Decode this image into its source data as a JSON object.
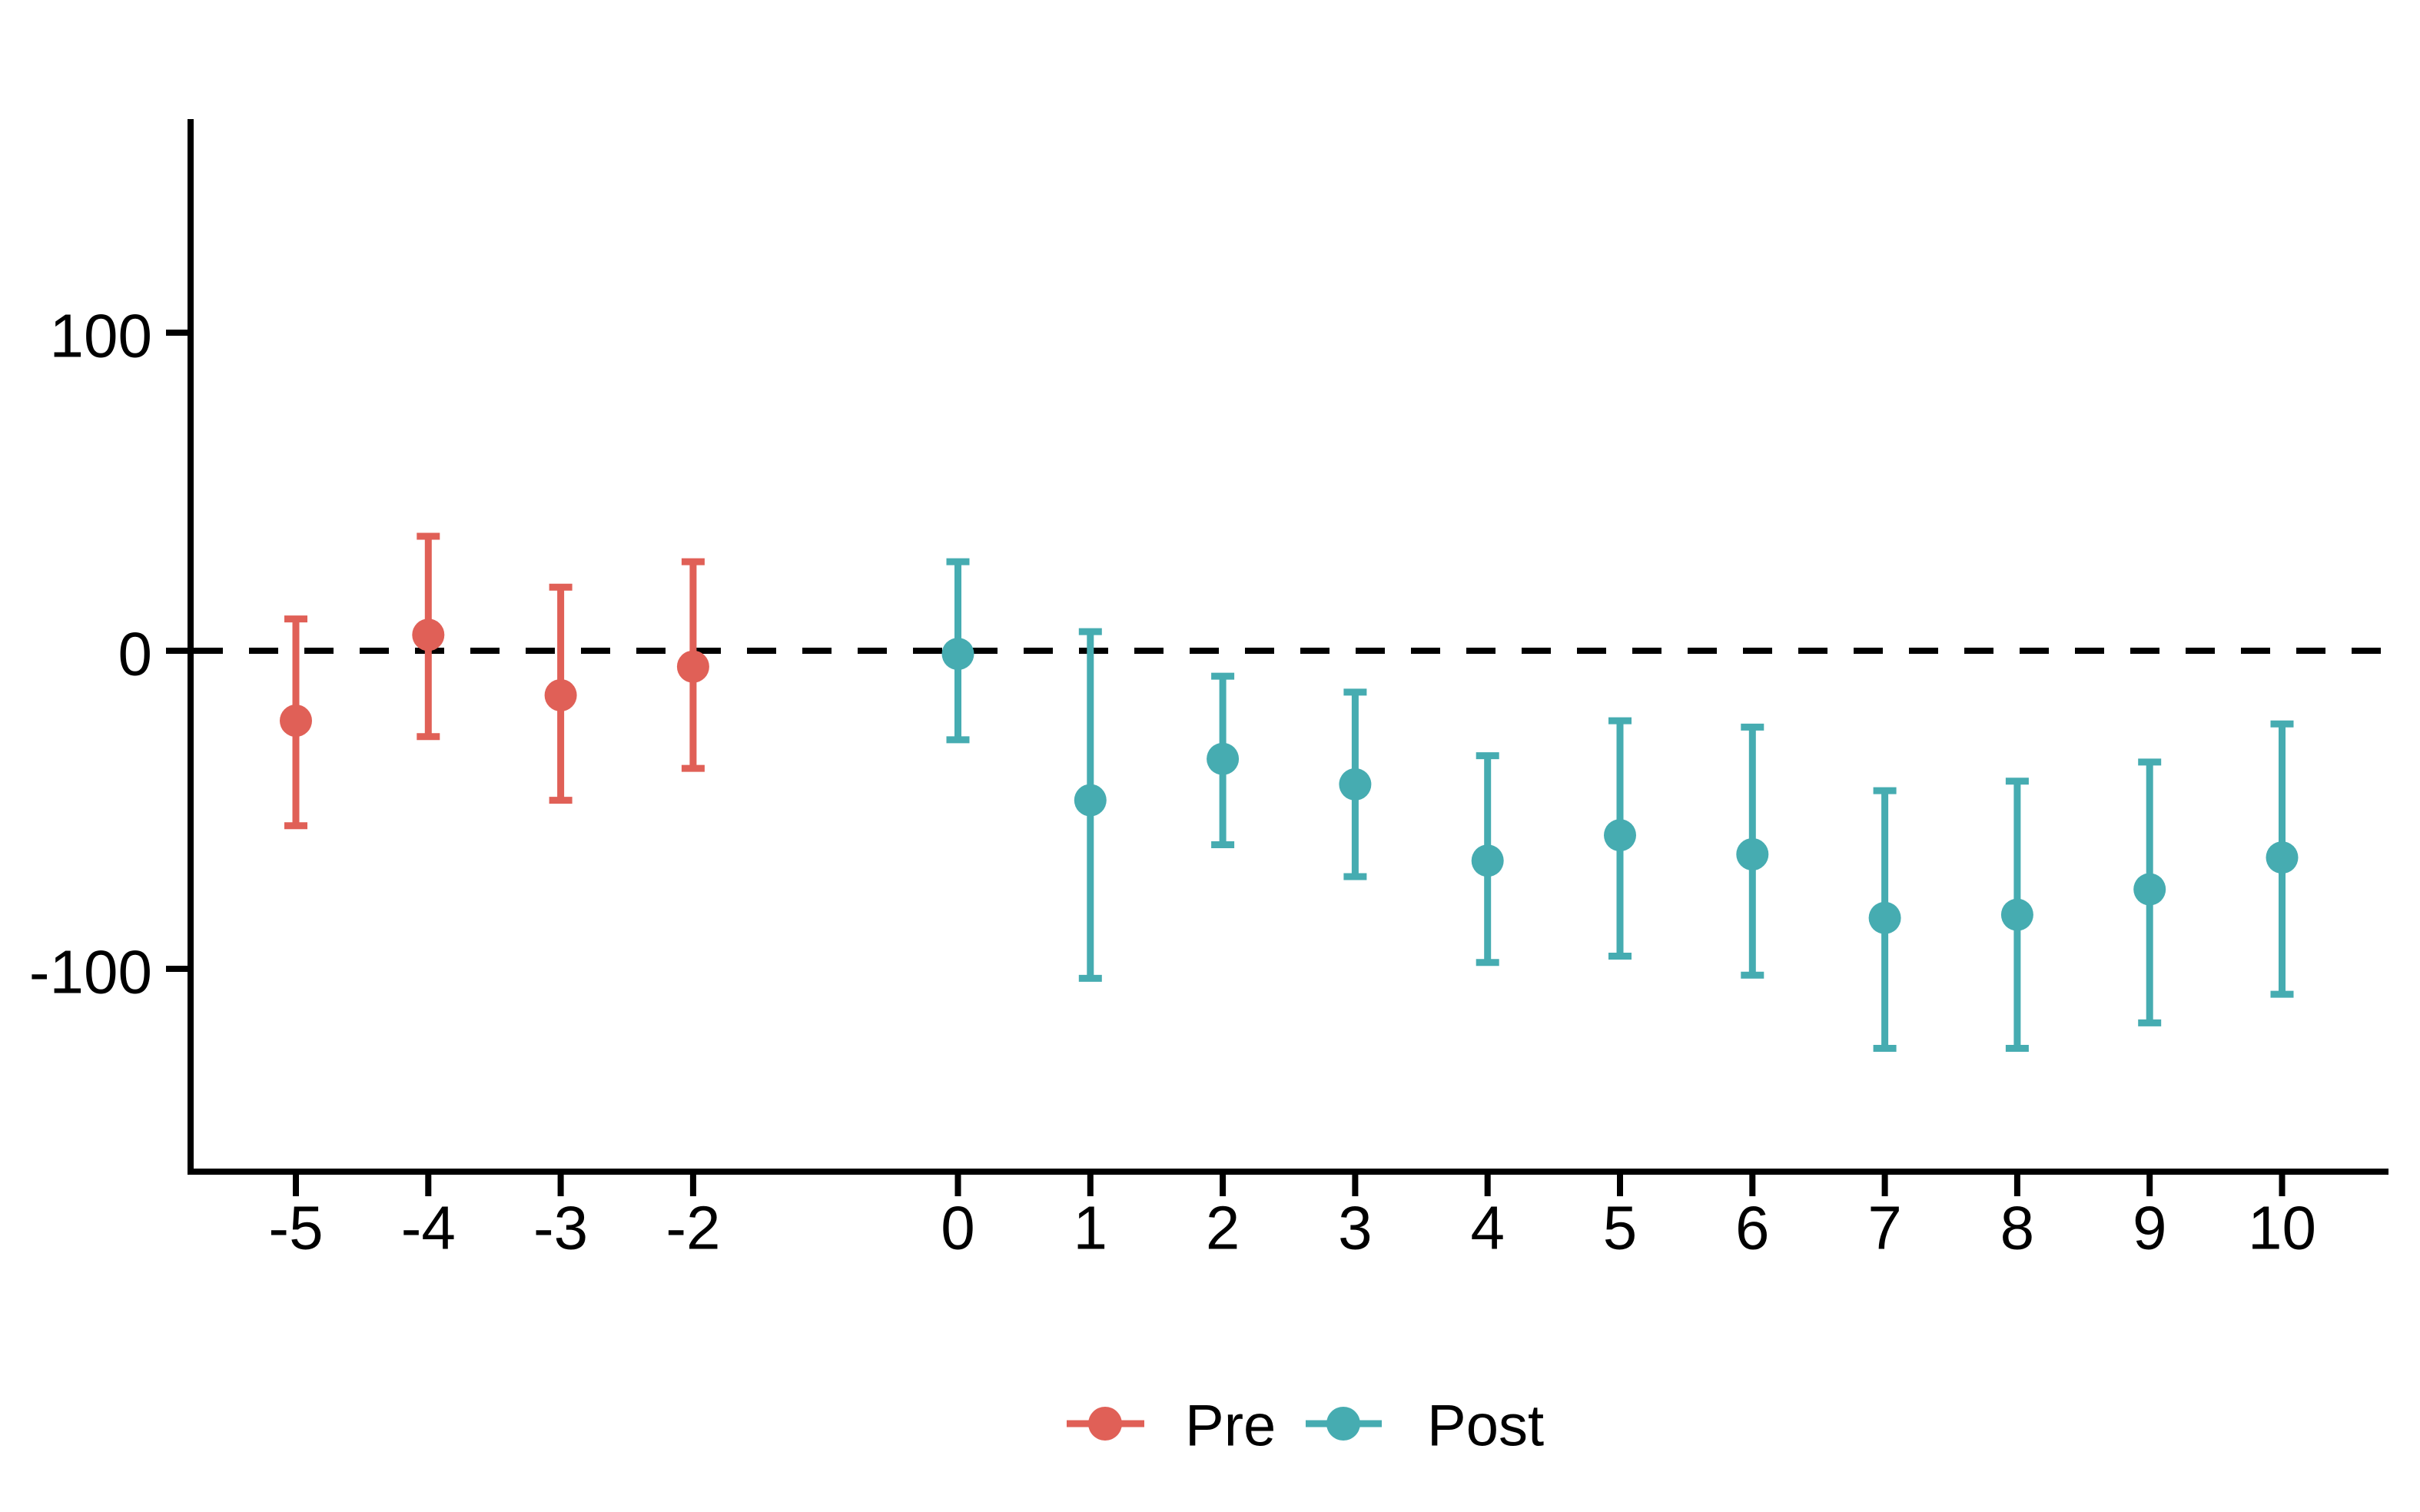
{
  "chart_data": {
    "type": "scatter",
    "subtype": "point-errorbar",
    "title": "",
    "xlabel": "",
    "ylabel": "",
    "x_ticks": [
      "-5",
      "-4",
      "-3",
      "-2",
      "0",
      "1",
      "2",
      "3",
      "4",
      "5",
      "6",
      "7",
      "8",
      "9",
      "10"
    ],
    "y_ticks": [
      "100",
      "0",
      "-100"
    ],
    "y_tick_values": [
      100,
      0,
      -100
    ],
    "xlim": [
      -5.8,
      10.8
    ],
    "ylim": [
      -164,
      166
    ],
    "grid": false,
    "omitted_period": -1,
    "zero_line": {
      "y": 0,
      "style": "dashed",
      "color": "#000000"
    },
    "legend_position": "bottom",
    "axis_color": "#000000",
    "series": [
      {
        "name": "Pre",
        "color": "#E06057",
        "points": [
          {
            "x": -5,
            "y": -22,
            "ci_low": -55,
            "ci_high": 10
          },
          {
            "x": -4,
            "y": 5,
            "ci_low": -27,
            "ci_high": 36
          },
          {
            "x": -3,
            "y": -14,
            "ci_low": -47,
            "ci_high": 20
          },
          {
            "x": -2,
            "y": -5,
            "ci_low": -37,
            "ci_high": 28
          }
        ]
      },
      {
        "name": "Post",
        "color": "#46ACB1",
        "points": [
          {
            "x": 0,
            "y": -1,
            "ci_low": -28,
            "ci_high": 28
          },
          {
            "x": 1,
            "y": -47,
            "ci_low": -103,
            "ci_high": 6
          },
          {
            "x": 2,
            "y": -34,
            "ci_low": -61,
            "ci_high": -8
          },
          {
            "x": 3,
            "y": -42,
            "ci_low": -71,
            "ci_high": -13
          },
          {
            "x": 4,
            "y": -66,
            "ci_low": -98,
            "ci_high": -33
          },
          {
            "x": 5,
            "y": -58,
            "ci_low": -96,
            "ci_high": -22
          },
          {
            "x": 6,
            "y": -64,
            "ci_low": -102,
            "ci_high": -24
          },
          {
            "x": 7,
            "y": -84,
            "ci_low": -125,
            "ci_high": -44
          },
          {
            "x": 8,
            "y": -83,
            "ci_low": -125,
            "ci_high": -41
          },
          {
            "x": 9,
            "y": -75,
            "ci_low": -117,
            "ci_high": -35
          },
          {
            "x": 10,
            "y": -65,
            "ci_low": -108,
            "ci_high": -23
          }
        ]
      }
    ]
  }
}
